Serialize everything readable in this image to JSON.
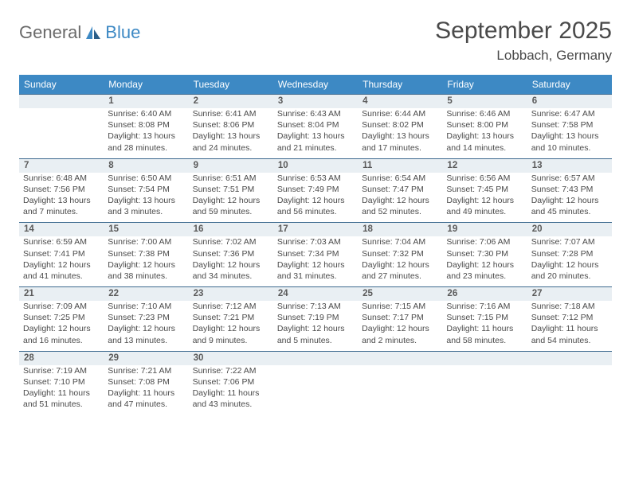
{
  "logo": {
    "general": "General",
    "blue": "Blue"
  },
  "title": "September 2025",
  "location": "Lobbach, Germany",
  "dayNames": [
    "Sunday",
    "Monday",
    "Tuesday",
    "Wednesday",
    "Thursday",
    "Friday",
    "Saturday"
  ],
  "colors": {
    "headerBg": "#3d89c4",
    "bandBg": "#e9eff3",
    "bandBorder": "#3d6a8f",
    "text": "#4a4a4a"
  },
  "weeks": [
    [
      {
        "num": "",
        "sunrise": "",
        "sunset": "",
        "day1": "",
        "day2": ""
      },
      {
        "num": "1",
        "sunrise": "Sunrise: 6:40 AM",
        "sunset": "Sunset: 8:08 PM",
        "day1": "Daylight: 13 hours",
        "day2": "and 28 minutes."
      },
      {
        "num": "2",
        "sunrise": "Sunrise: 6:41 AM",
        "sunset": "Sunset: 8:06 PM",
        "day1": "Daylight: 13 hours",
        "day2": "and 24 minutes."
      },
      {
        "num": "3",
        "sunrise": "Sunrise: 6:43 AM",
        "sunset": "Sunset: 8:04 PM",
        "day1": "Daylight: 13 hours",
        "day2": "and 21 minutes."
      },
      {
        "num": "4",
        "sunrise": "Sunrise: 6:44 AM",
        "sunset": "Sunset: 8:02 PM",
        "day1": "Daylight: 13 hours",
        "day2": "and 17 minutes."
      },
      {
        "num": "5",
        "sunrise": "Sunrise: 6:46 AM",
        "sunset": "Sunset: 8:00 PM",
        "day1": "Daylight: 13 hours",
        "day2": "and 14 minutes."
      },
      {
        "num": "6",
        "sunrise": "Sunrise: 6:47 AM",
        "sunset": "Sunset: 7:58 PM",
        "day1": "Daylight: 13 hours",
        "day2": "and 10 minutes."
      }
    ],
    [
      {
        "num": "7",
        "sunrise": "Sunrise: 6:48 AM",
        "sunset": "Sunset: 7:56 PM",
        "day1": "Daylight: 13 hours",
        "day2": "and 7 minutes."
      },
      {
        "num": "8",
        "sunrise": "Sunrise: 6:50 AM",
        "sunset": "Sunset: 7:54 PM",
        "day1": "Daylight: 13 hours",
        "day2": "and 3 minutes."
      },
      {
        "num": "9",
        "sunrise": "Sunrise: 6:51 AM",
        "sunset": "Sunset: 7:51 PM",
        "day1": "Daylight: 12 hours",
        "day2": "and 59 minutes."
      },
      {
        "num": "10",
        "sunrise": "Sunrise: 6:53 AM",
        "sunset": "Sunset: 7:49 PM",
        "day1": "Daylight: 12 hours",
        "day2": "and 56 minutes."
      },
      {
        "num": "11",
        "sunrise": "Sunrise: 6:54 AM",
        "sunset": "Sunset: 7:47 PM",
        "day1": "Daylight: 12 hours",
        "day2": "and 52 minutes."
      },
      {
        "num": "12",
        "sunrise": "Sunrise: 6:56 AM",
        "sunset": "Sunset: 7:45 PM",
        "day1": "Daylight: 12 hours",
        "day2": "and 49 minutes."
      },
      {
        "num": "13",
        "sunrise": "Sunrise: 6:57 AM",
        "sunset": "Sunset: 7:43 PM",
        "day1": "Daylight: 12 hours",
        "day2": "and 45 minutes."
      }
    ],
    [
      {
        "num": "14",
        "sunrise": "Sunrise: 6:59 AM",
        "sunset": "Sunset: 7:41 PM",
        "day1": "Daylight: 12 hours",
        "day2": "and 41 minutes."
      },
      {
        "num": "15",
        "sunrise": "Sunrise: 7:00 AM",
        "sunset": "Sunset: 7:38 PM",
        "day1": "Daylight: 12 hours",
        "day2": "and 38 minutes."
      },
      {
        "num": "16",
        "sunrise": "Sunrise: 7:02 AM",
        "sunset": "Sunset: 7:36 PM",
        "day1": "Daylight: 12 hours",
        "day2": "and 34 minutes."
      },
      {
        "num": "17",
        "sunrise": "Sunrise: 7:03 AM",
        "sunset": "Sunset: 7:34 PM",
        "day1": "Daylight: 12 hours",
        "day2": "and 31 minutes."
      },
      {
        "num": "18",
        "sunrise": "Sunrise: 7:04 AM",
        "sunset": "Sunset: 7:32 PM",
        "day1": "Daylight: 12 hours",
        "day2": "and 27 minutes."
      },
      {
        "num": "19",
        "sunrise": "Sunrise: 7:06 AM",
        "sunset": "Sunset: 7:30 PM",
        "day1": "Daylight: 12 hours",
        "day2": "and 23 minutes."
      },
      {
        "num": "20",
        "sunrise": "Sunrise: 7:07 AM",
        "sunset": "Sunset: 7:28 PM",
        "day1": "Daylight: 12 hours",
        "day2": "and 20 minutes."
      }
    ],
    [
      {
        "num": "21",
        "sunrise": "Sunrise: 7:09 AM",
        "sunset": "Sunset: 7:25 PM",
        "day1": "Daylight: 12 hours",
        "day2": "and 16 minutes."
      },
      {
        "num": "22",
        "sunrise": "Sunrise: 7:10 AM",
        "sunset": "Sunset: 7:23 PM",
        "day1": "Daylight: 12 hours",
        "day2": "and 13 minutes."
      },
      {
        "num": "23",
        "sunrise": "Sunrise: 7:12 AM",
        "sunset": "Sunset: 7:21 PM",
        "day1": "Daylight: 12 hours",
        "day2": "and 9 minutes."
      },
      {
        "num": "24",
        "sunrise": "Sunrise: 7:13 AM",
        "sunset": "Sunset: 7:19 PM",
        "day1": "Daylight: 12 hours",
        "day2": "and 5 minutes."
      },
      {
        "num": "25",
        "sunrise": "Sunrise: 7:15 AM",
        "sunset": "Sunset: 7:17 PM",
        "day1": "Daylight: 12 hours",
        "day2": "and 2 minutes."
      },
      {
        "num": "26",
        "sunrise": "Sunrise: 7:16 AM",
        "sunset": "Sunset: 7:15 PM",
        "day1": "Daylight: 11 hours",
        "day2": "and 58 minutes."
      },
      {
        "num": "27",
        "sunrise": "Sunrise: 7:18 AM",
        "sunset": "Sunset: 7:12 PM",
        "day1": "Daylight: 11 hours",
        "day2": "and 54 minutes."
      }
    ],
    [
      {
        "num": "28",
        "sunrise": "Sunrise: 7:19 AM",
        "sunset": "Sunset: 7:10 PM",
        "day1": "Daylight: 11 hours",
        "day2": "and 51 minutes."
      },
      {
        "num": "29",
        "sunrise": "Sunrise: 7:21 AM",
        "sunset": "Sunset: 7:08 PM",
        "day1": "Daylight: 11 hours",
        "day2": "and 47 minutes."
      },
      {
        "num": "30",
        "sunrise": "Sunrise: 7:22 AM",
        "sunset": "Sunset: 7:06 PM",
        "day1": "Daylight: 11 hours",
        "day2": "and 43 minutes."
      },
      {
        "num": "",
        "sunrise": "",
        "sunset": "",
        "day1": "",
        "day2": ""
      },
      {
        "num": "",
        "sunrise": "",
        "sunset": "",
        "day1": "",
        "day2": ""
      },
      {
        "num": "",
        "sunrise": "",
        "sunset": "",
        "day1": "",
        "day2": ""
      },
      {
        "num": "",
        "sunrise": "",
        "sunset": "",
        "day1": "",
        "day2": ""
      }
    ]
  ]
}
